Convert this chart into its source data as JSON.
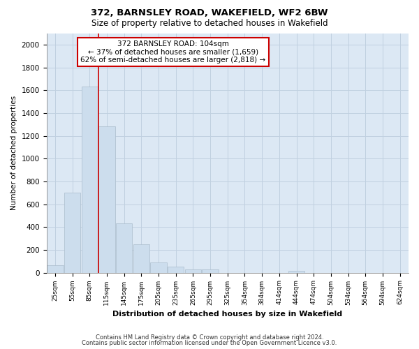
{
  "title": "372, BARNSLEY ROAD, WAKEFIELD, WF2 6BW",
  "subtitle": "Size of property relative to detached houses in Wakefield",
  "xlabel": "Distribution of detached houses by size in Wakefield",
  "ylabel": "Number of detached properties",
  "categories": [
    "25sqm",
    "55sqm",
    "85sqm",
    "115sqm",
    "145sqm",
    "175sqm",
    "205sqm",
    "235sqm",
    "265sqm",
    "295sqm",
    "325sqm",
    "354sqm",
    "384sqm",
    "414sqm",
    "444sqm",
    "474sqm",
    "504sqm",
    "534sqm",
    "564sqm",
    "594sqm",
    "624sqm"
  ],
  "values": [
    65,
    700,
    1630,
    1280,
    430,
    250,
    90,
    50,
    25,
    25,
    0,
    0,
    0,
    0,
    15,
    0,
    0,
    0,
    0,
    0,
    0
  ],
  "bar_color": "#ccdded",
  "bar_edge_color": "#aabccc",
  "annotation_text": "372 BARNSLEY ROAD: 104sqm\n← 37% of detached houses are smaller (1,659)\n62% of semi-detached houses are larger (2,818) →",
  "annotation_box_color": "#ffffff",
  "annotation_box_edge_color": "#cc0000",
  "redline_color": "#cc0000",
  "grid_color": "#c0d0e0",
  "background_color": "#dce8f4",
  "fig_background": "#ffffff",
  "ylim": [
    0,
    2100
  ],
  "yticks": [
    0,
    200,
    400,
    600,
    800,
    1000,
    1200,
    1400,
    1600,
    1800,
    2000
  ],
  "footer_line1": "Contains HM Land Registry data © Crown copyright and database right 2024.",
  "footer_line2": "Contains public sector information licensed under the Open Government Licence v3.0."
}
